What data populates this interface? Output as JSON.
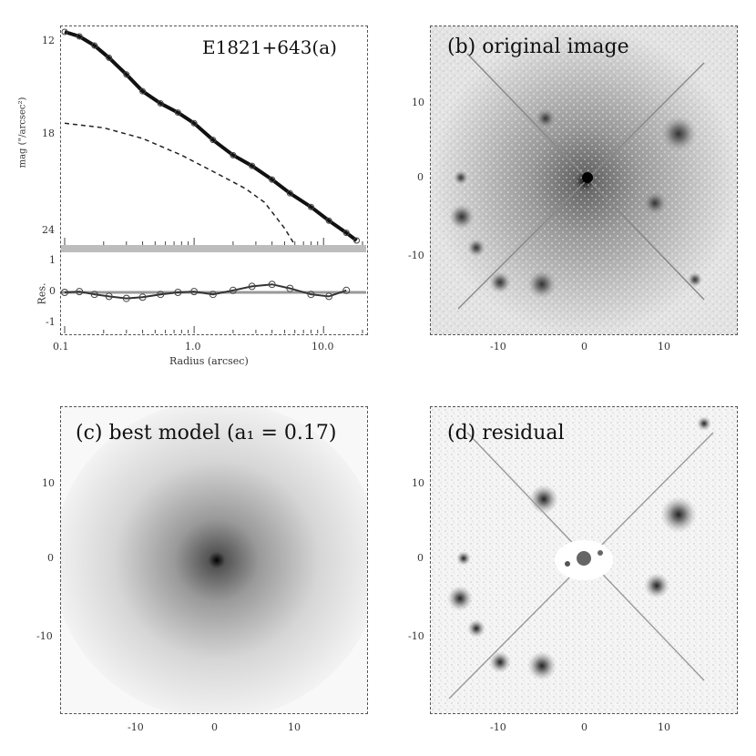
{
  "panel_a": {
    "label": "E1821+643(a)",
    "ylabel": "mag (\"/arcsec²)",
    "ylabel_res": "Res.",
    "xlabel": "Radius (arcsec)",
    "yticks": [
      "12",
      "18",
      "24"
    ],
    "res_yticks": [
      "1",
      "0",
      "-1"
    ],
    "xticks": [
      "0.1",
      "1.0",
      "10.0"
    ]
  },
  "panel_b": {
    "label": "(b) original image",
    "yticks": [
      "10",
      "0",
      "-10"
    ],
    "xticks": [
      "-10",
      "0",
      "10"
    ]
  },
  "panel_c": {
    "label": "(c) best model (a₁ = 0.17)",
    "yticks": [
      "10",
      "0",
      "-10"
    ],
    "xticks": [
      "-10",
      "0",
      "10"
    ]
  },
  "panel_d": {
    "label": "(d) residual",
    "yticks": [
      "10",
      "0",
      "-10"
    ],
    "xticks": [
      "-10",
      "0",
      "10"
    ]
  },
  "chart_data": [
    {
      "type": "line",
      "title": "E1821+643(a)",
      "xlabel": "Radius (arcsec)",
      "ylabel": "mag (\"/arcsec²)",
      "xscale": "log",
      "xlim": [
        0.1,
        20
      ],
      "ylim": [
        26,
        12
      ],
      "series": [
        {
          "name": "",
          "style": "points",
          "x": [
            0.1,
            0.13,
            0.17,
            0.22,
            0.3,
            0.4,
            0.55,
            0.75,
            1.0,
            1.4,
            2.0,
            2.8,
            4.0,
            5.5,
            8.0,
            11.0,
            15.0,
            18.0
          ],
          "y": [
            12.0,
            12.3,
            12.9,
            13.7,
            14.8,
            15.9,
            16.7,
            17.3,
            18.0,
            19.1,
            20.1,
            20.8,
            21.7,
            22.6,
            23.5,
            24.4,
            25.2,
            25.7
          ]
        },
        {
          "name": "",
          "style": "dashed",
          "x": [
            0.1,
            0.2,
            0.4,
            0.8,
            1.5,
            2.5,
            3.5,
            5.0,
            6.0
          ],
          "y": [
            18.0,
            18.3,
            19.0,
            20.1,
            21.3,
            22.3,
            23.2,
            24.9,
            26.0
          ]
        }
      ]
    },
    {
      "type": "line",
      "ylabel": "Res.",
      "xlabel": "Radius (arcsec)",
      "xscale": "log",
      "xlim": [
        0.1,
        20
      ],
      "ylim": [
        -1,
        1
      ],
      "series": [
        {
          "name": "",
          "style": "points",
          "x": [
            0.1,
            0.13,
            0.17,
            0.22,
            0.3,
            0.4,
            0.55,
            0.75,
            1.0,
            1.4,
            2.0,
            2.8,
            4.0,
            5.5,
            8.0,
            11.0,
            15.0
          ],
          "y": [
            0.0,
            0.02,
            -0.05,
            -0.1,
            -0.15,
            -0.12,
            -0.05,
            0.0,
            0.02,
            -0.05,
            0.05,
            0.15,
            0.2,
            0.1,
            -0.05,
            -0.1,
            0.05
          ]
        }
      ]
    }
  ]
}
